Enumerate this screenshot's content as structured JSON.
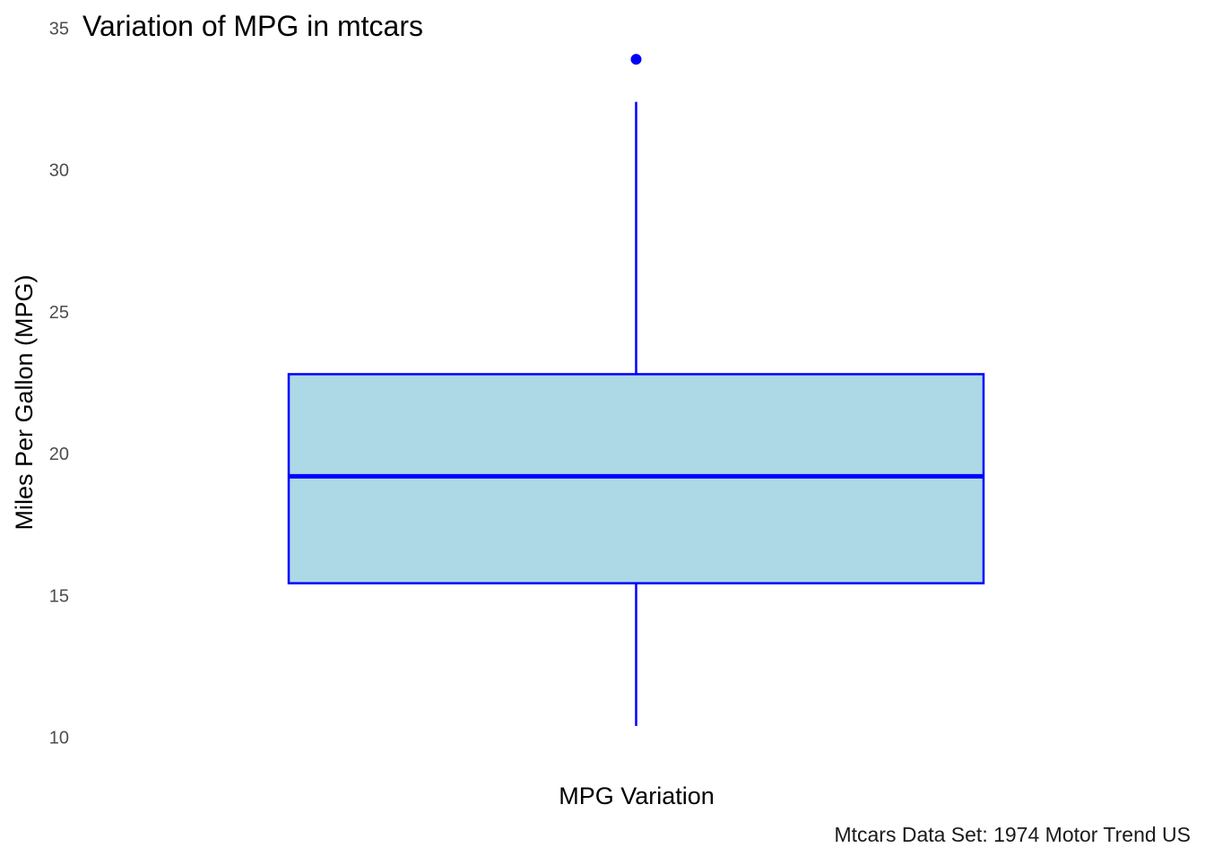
{
  "chart_data": {
    "type": "box",
    "title": "Variation of MPG in mtcars",
    "xlabel": "MPG Variation",
    "ylabel": "Miles Per Gallon (MPG)",
    "caption": "Mtcars Data Set: 1974 Motor Trend US",
    "ylim": [
      10,
      35
    ],
    "yticks": [
      10,
      15,
      20,
      25,
      30,
      35
    ],
    "grid": false,
    "legend": "none",
    "box": {
      "min": 10.4,
      "q1": 15.43,
      "median": 19.2,
      "q3": 22.8,
      "max": 32.4,
      "outliers": [
        33.9
      ]
    },
    "colors": {
      "fill": "#ADD8E6",
      "line": "#0000FF",
      "outlier": "#0000FF"
    }
  }
}
